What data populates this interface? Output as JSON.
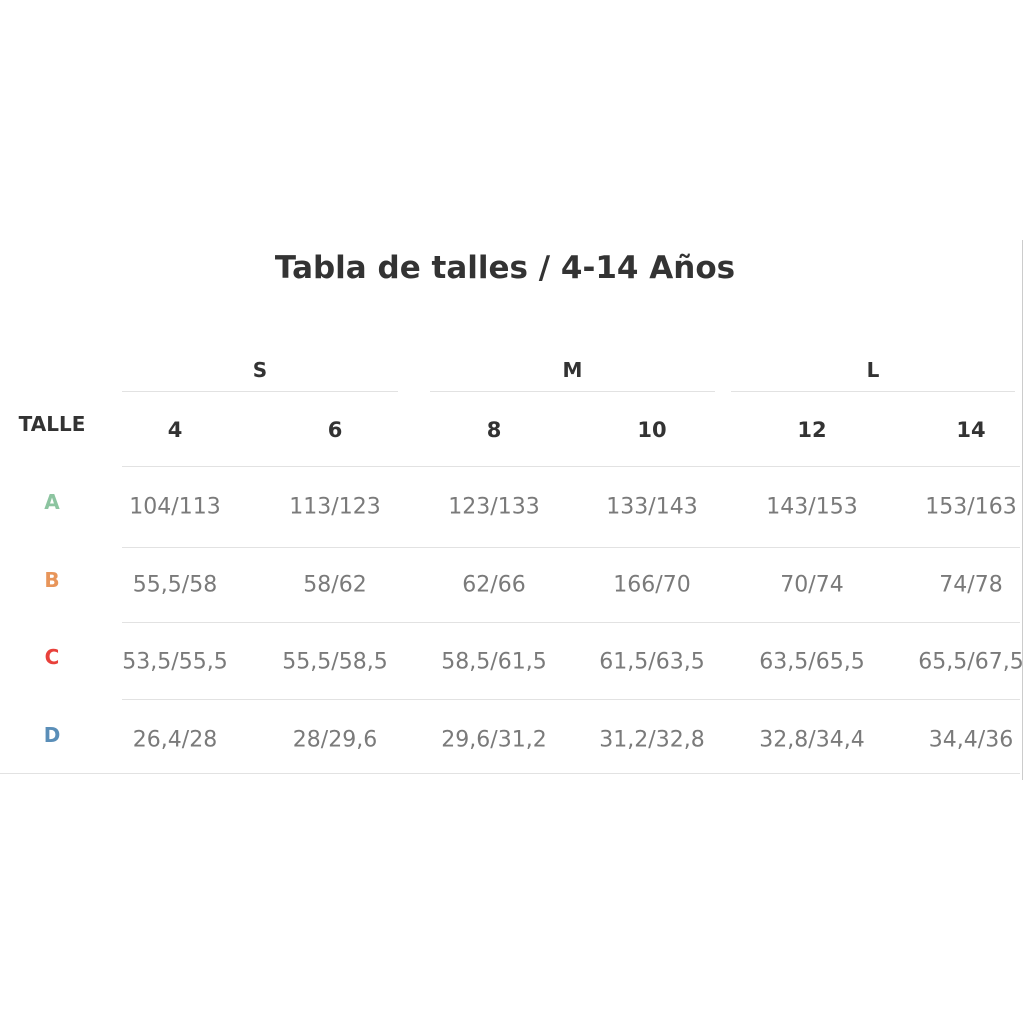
{
  "title": "Tabla de talles / 4-14 Años",
  "table": {
    "header_label": "TALLE",
    "groups": [
      "S",
      "M",
      "L"
    ],
    "sizes": [
      "4",
      "6",
      "8",
      "10",
      "12",
      "14"
    ],
    "rows": [
      {
        "label": "A",
        "color": "#8cc4a0",
        "cells": [
          "104/113",
          "113/123",
          "123/133",
          "133/143",
          "143/153",
          "153/163"
        ]
      },
      {
        "label": "B",
        "color": "#e8955a",
        "cells": [
          "55,5/58",
          "58/62",
          "62/66",
          "166/70",
          "70/74",
          "74/78"
        ]
      },
      {
        "label": "C",
        "color": "#e8413b",
        "cells": [
          "53,5/55,5",
          "55,5/58,5",
          "58,5/61,5",
          "61,5/63,5",
          "63,5/65,5",
          "65,5/67,5"
        ]
      },
      {
        "label": "D",
        "color": "#5a8eb8",
        "cells": [
          "26,4/28",
          "28/29,6",
          "29,6/31,2",
          "31,2/32,8",
          "32,8/34,4",
          "34,4/36"
        ]
      }
    ]
  }
}
